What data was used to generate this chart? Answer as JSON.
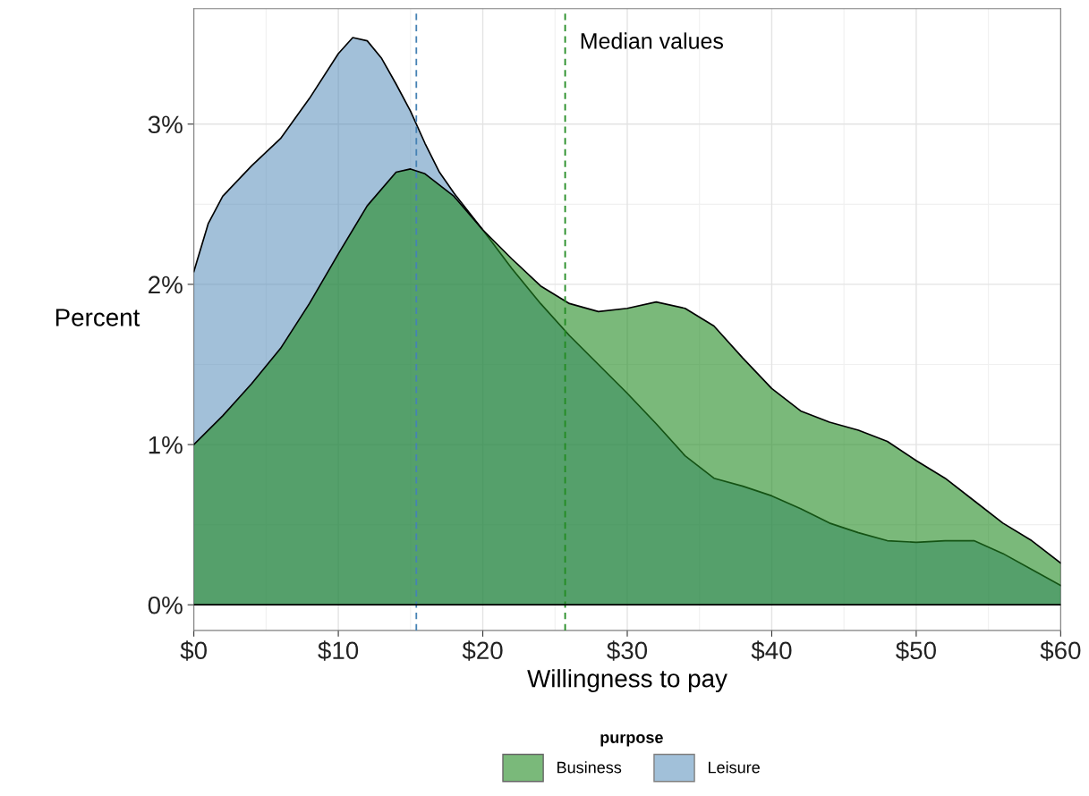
{
  "chart_data": {
    "type": "area",
    "xlabel": "Willingness to pay",
    "ylabel": "Percent",
    "legend_title": "purpose",
    "legend": "bottom",
    "grid": true,
    "xlim": [
      0,
      60
    ],
    "ylim": [
      -0.16,
      3.72
    ],
    "xticks": [
      {
        "value": 0,
        "label": "$0"
      },
      {
        "value": 10,
        "label": "$10"
      },
      {
        "value": 20,
        "label": "$20"
      },
      {
        "value": 30,
        "label": "$30"
      },
      {
        "value": 40,
        "label": "$40"
      },
      {
        "value": 50,
        "label": "$50"
      },
      {
        "value": 60,
        "label": "$60"
      }
    ],
    "yticks": [
      {
        "value": 0,
        "label": "0%"
      },
      {
        "value": 1,
        "label": "1%"
      },
      {
        "value": 2,
        "label": "2%"
      },
      {
        "value": 3,
        "label": "3%"
      }
    ],
    "series": [
      {
        "name": "Business",
        "color": "#228b22",
        "x": [
          0,
          2,
          4,
          6,
          8,
          10,
          12,
          14,
          15,
          16,
          18,
          20,
          22,
          24,
          26,
          28,
          30,
          32,
          34,
          36,
          38,
          40,
          42,
          44,
          46,
          48,
          50,
          52,
          54,
          56,
          58,
          60
        ],
        "values": [
          1.0,
          1.18,
          1.38,
          1.6,
          1.88,
          2.19,
          2.49,
          2.7,
          2.72,
          2.69,
          2.55,
          2.34,
          2.16,
          1.99,
          1.88,
          1.83,
          1.85,
          1.89,
          1.85,
          1.74,
          1.54,
          1.35,
          1.21,
          1.14,
          1.09,
          1.02,
          0.9,
          0.79,
          0.65,
          0.51,
          0.4,
          0.26
        ]
      },
      {
        "name": "Leisure",
        "color": "#4682b4",
        "x": [
          0,
          1,
          2,
          4,
          6,
          8,
          10,
          11,
          12,
          13,
          14,
          15,
          16,
          17,
          18,
          20,
          22,
          24,
          26,
          28,
          30,
          32,
          34,
          36,
          38,
          40,
          42,
          44,
          46,
          48,
          50,
          52,
          54,
          56,
          58,
          60
        ],
        "values": [
          2.08,
          2.38,
          2.55,
          2.74,
          2.91,
          3.16,
          3.44,
          3.54,
          3.52,
          3.41,
          3.25,
          3.08,
          2.88,
          2.7,
          2.57,
          2.34,
          2.1,
          1.88,
          1.68,
          1.5,
          1.32,
          1.13,
          0.93,
          0.79,
          0.74,
          0.68,
          0.6,
          0.51,
          0.45,
          0.4,
          0.39,
          0.4,
          0.4,
          0.32,
          0.22,
          0.12
        ]
      }
    ],
    "ref_lines": [
      {
        "axis": "x",
        "value": 15.4,
        "color": "#4682b4",
        "line_style": "dashed"
      },
      {
        "axis": "x",
        "value": 25.7,
        "color": "#228b22",
        "line_style": "dashed"
      },
      {
        "axis": "y",
        "value": 0,
        "color": "#000000",
        "line_style": "solid"
      }
    ],
    "annotations": [
      "Median values"
    ]
  }
}
